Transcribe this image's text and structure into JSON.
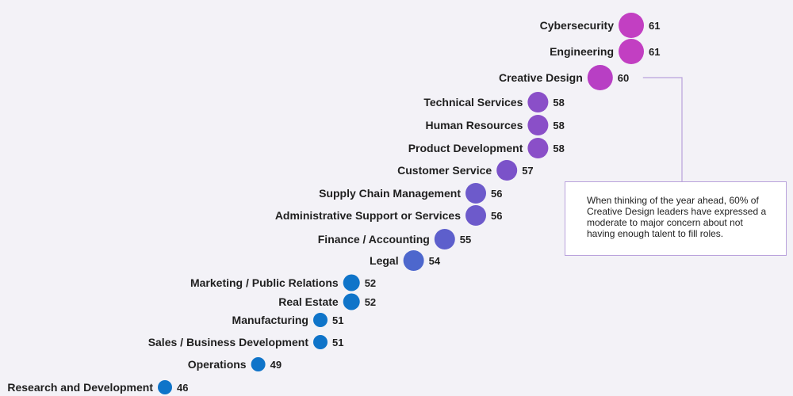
{
  "chart_data": {
    "type": "scatter",
    "categories": [
      "Cybersecurity",
      "Engineering",
      "Creative Design",
      "Technical Services",
      "Human Resources",
      "Product Development",
      "Customer Service",
      "Supply Chain Management",
      "Administrative Support or Services",
      "Finance / Accounting",
      "Legal",
      "Marketing / Public Relations",
      "Real Estate",
      "Manufacturing",
      "Sales / Business Development",
      "Operations",
      "Research and Development"
    ],
    "values": [
      61,
      61,
      60,
      58,
      58,
      58,
      57,
      56,
      56,
      55,
      54,
      52,
      52,
      51,
      51,
      49,
      46
    ],
    "colors": {
      "61": "#c23fc2",
      "60": "#b83fc4",
      "58": "#8a4fc8",
      "57": "#7b52c9",
      "56": "#6d5acb",
      "55": "#5d5fcc",
      "54": "#4d67cd",
      "52": "#0f74c9",
      "51": "#0f74c9",
      "49": "#0f74c9",
      "46": "#0f74c9"
    },
    "connector_color": "#b9a2dc",
    "highlight_category": "Creative Design",
    "annotation": "When thinking of the year ahead, 60% of Creative Design leaders have expressed a moderate to major concern about not having enough talent to fill roles."
  }
}
